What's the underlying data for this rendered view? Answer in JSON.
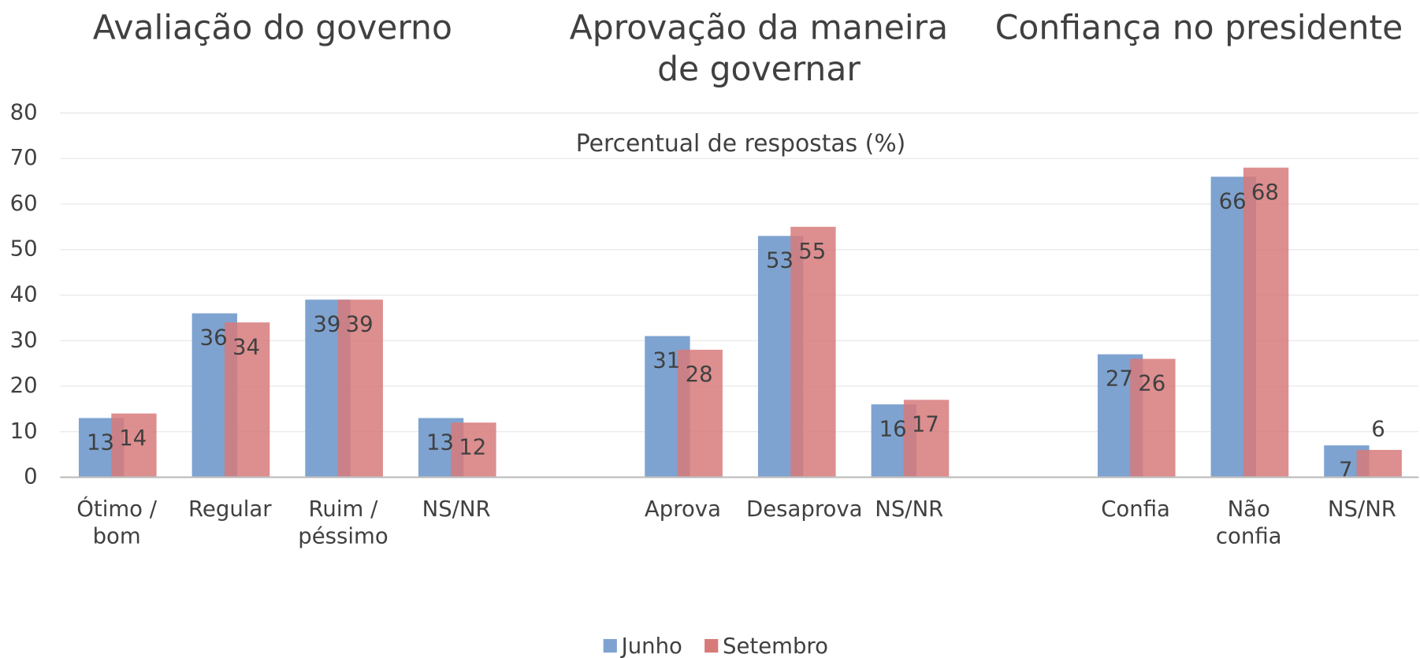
{
  "chart_data": {
    "type": "bar",
    "titles": [
      "Avaliação do governo",
      "Aprovação da maneira de governar",
      "Confiança no presidente"
    ],
    "subtitle": "Percentual de respostas (%)",
    "categories": [
      "Ótimo / bom",
      "Regular",
      "Ruim / péssimo",
      "NS/NR",
      null,
      "Aprova",
      "Desaprova",
      "NS/NR",
      null,
      "Confia",
      "Não confia",
      "NS/NR"
    ],
    "series": [
      {
        "name": "Junho",
        "color": "#7ea3d0",
        "values": [
          13,
          36,
          39,
          13,
          null,
          31,
          53,
          16,
          null,
          27,
          66,
          7
        ]
      },
      {
        "name": "Setembro",
        "color": "#d77a7a",
        "values": [
          14,
          34,
          39,
          12,
          null,
          28,
          55,
          17,
          null,
          26,
          68,
          6
        ]
      }
    ],
    "ylim": [
      0,
      80
    ],
    "yticks": [
      0,
      10,
      20,
      30,
      40,
      50,
      60,
      70,
      80
    ],
    "grid": true,
    "legend": "bottom"
  }
}
